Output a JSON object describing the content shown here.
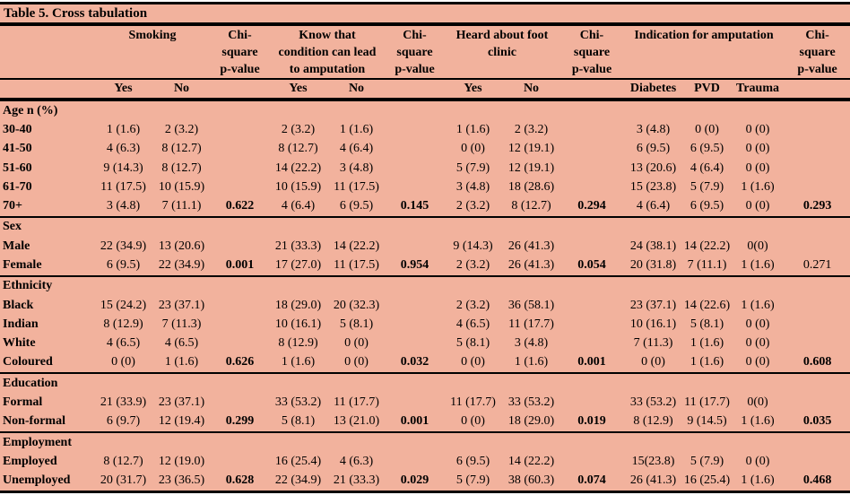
{
  "title": "Table 5. Cross tabulation",
  "colors": {
    "background": "#F2B29D",
    "rule": "#000000",
    "text": "#000000"
  },
  "header": {
    "groups": [
      {
        "label": "",
        "span": 1
      },
      {
        "label": "Smoking",
        "span": 2
      },
      {
        "label": "Chi-\nsquare\np-value",
        "span": 1
      },
      {
        "label": "Know that\ncondition can lead\nto amputation",
        "span": 2
      },
      {
        "label": "Chi-\nsquare\np-value",
        "span": 1
      },
      {
        "label": "Heard about foot\nclinic",
        "span": 2
      },
      {
        "label": "Chi-\nsquare\np-value",
        "span": 1
      },
      {
        "label": "Indication for amputation",
        "span": 3
      },
      {
        "label": "Chi-\nsquare\np-value",
        "span": 1
      }
    ],
    "subheaders": [
      "",
      "Yes",
      "No",
      "",
      "Yes",
      "No",
      "",
      "Yes",
      "No",
      "",
      "Diabetes",
      "PVD",
      "Trauma",
      ""
    ]
  },
  "pvalue_columns": [
    3,
    6,
    9,
    13
  ],
  "sections": [
    {
      "header": "Age n (%)",
      "rows": [
        {
          "label": "30-40",
          "cells": [
            "1 (1.6)",
            "2 (3.2)",
            "",
            "2 (3.2)",
            "1 (1.6)",
            "",
            "1 (1.6)",
            "2 (3.2)",
            "",
            "3 (4.8)",
            "0 (0)",
            "0 (0)",
            ""
          ]
        },
        {
          "label": "41-50",
          "cells": [
            "4 (6.3)",
            "8 (12.7)",
            "",
            "8 (12.7)",
            "4 (6.4)",
            "",
            "0 (0)",
            "12 (19.1)",
            "",
            "6 (9.5)",
            "6 (9.5)",
            "0 (0)",
            ""
          ]
        },
        {
          "label": "51-60",
          "cells": [
            "9 (14.3)",
            "8 (12.7)",
            "",
            "14 (22.2)",
            "3 (4.8)",
            "",
            "5 (7.9)",
            "12 (19.1)",
            "",
            "13 (20.6)",
            "4 (6.4)",
            "0 (0)",
            ""
          ]
        },
        {
          "label": "61-70",
          "cells": [
            "11 (17.5)",
            "10 (15.9)",
            "",
            "10 (15.9)",
            "11 (17.5)",
            "",
            "3 (4.8)",
            "18 (28.6)",
            "",
            "15 (23.8)",
            "5 (7.9)",
            "1 (1.6)",
            ""
          ]
        },
        {
          "label": "70+",
          "cells": [
            "3 (4.8)",
            "7 (11.1)",
            "0.622",
            "4 (6.4)",
            "6 (9.5)",
            "0.145",
            "2 (3.2)",
            "8 (12.7)",
            "0.294",
            "4 (6.4)",
            "6 (9.5)",
            "0 (0)",
            "0.293"
          ]
        }
      ]
    },
    {
      "header": "Sex",
      "rows": [
        {
          "label": "Male",
          "cells": [
            "22 (34.9)",
            "13 (20.6)",
            "",
            "21 (33.3)",
            "14 (22.2)",
            "",
            "9 (14.3)",
            "26 (41.3)",
            "",
            "24 (38.1)",
            "14 (22.2)",
            "0(0)",
            ""
          ]
        },
        {
          "label": "Female",
          "cells": [
            "6 (9.5)",
            "22 (34.9)",
            "0.001",
            "17 (27.0)",
            "11 (17.5)",
            "0.954",
            "2 (3.2)",
            "26 (41.3)",
            "0.054",
            "20 (31.8)",
            "7 (11.1)",
            "1 (1.6)",
            "0.271"
          ],
          "plain_pvalues": [
            13
          ]
        }
      ]
    },
    {
      "header": "Ethnicity",
      "rows": [
        {
          "label": "Black",
          "cells": [
            "15 (24.2)",
            "23 (37.1)",
            "",
            "18 (29.0)",
            "20 (32.3)",
            "",
            "2 (3.2)",
            "36 (58.1)",
            "",
            "23 (37.1)",
            "14 (22.6)",
            "1 (1.6)",
            ""
          ]
        },
        {
          "label": "Indian",
          "cells": [
            "8 (12.9)",
            "7 (11.3)",
            "",
            "10 (16.1)",
            "5 (8.1)",
            "",
            "4 (6.5)",
            "11 (17.7)",
            "",
            "10 (16.1)",
            "5 (8.1)",
            "0 (0)",
            ""
          ]
        },
        {
          "label": "White",
          "cells": [
            "4 (6.5)",
            "4 (6.5)",
            "",
            "8 (12.9)",
            "0 (0)",
            "",
            "5 (8.1)",
            "3 (4.8)",
            "",
            "7 (11.3)",
            "1 (1.6)",
            "0 (0)",
            ""
          ]
        },
        {
          "label": "Coloured",
          "cells": [
            "0 (0)",
            "1 (1.6)",
            "0.626",
            "1 (1.6)",
            "0 (0)",
            "0.032",
            "0 (0)",
            "1 (1.6)",
            "0.001",
            "0 (0)",
            "1 (1.6)",
            "0 (0)",
            "0.608"
          ]
        }
      ]
    },
    {
      "header": "Education",
      "rows": [
        {
          "label": "Formal",
          "cells": [
            "21 (33.9)",
            "23 (37.1)",
            "",
            "33 (53.2)",
            "11 (17.7)",
            "",
            "11 (17.7)",
            "33 (53.2)",
            "",
            "33 (53.2)",
            "11 (17.7)",
            "0(0)",
            ""
          ]
        },
        {
          "label": "Non-formal",
          "cells": [
            "6 (9.7)",
            "12 (19.4)",
            "0.299",
            "5 (8.1)",
            "13 (21.0)",
            "0.001",
            "0 (0)",
            "18 (29.0)",
            "0.019",
            "8 (12.9)",
            "9 (14.5)",
            "1 (1.6)",
            "0.035"
          ]
        }
      ]
    },
    {
      "header": "Employment",
      "rows": [
        {
          "label": "Employed",
          "cells": [
            "8 (12.7)",
            "12 (19.0)",
            "",
            "16 (25.4)",
            "4 (6.3)",
            "",
            "6 (9.5)",
            "14 (22.2)",
            "",
            "15(23.8)",
            "5 (7.9)",
            "0 (0)",
            ""
          ]
        },
        {
          "label": "Unemployed",
          "cells": [
            "20 (31.7)",
            "23 (36.5)",
            "0.628",
            "22 (34.9)",
            "21 (33.3)",
            "0.029",
            "5 (7.9)",
            "38 (60.3)",
            "0.074",
            "26 (41.3)",
            "16 (25.4)",
            "1 (1.6)",
            "0.468"
          ]
        }
      ]
    }
  ]
}
